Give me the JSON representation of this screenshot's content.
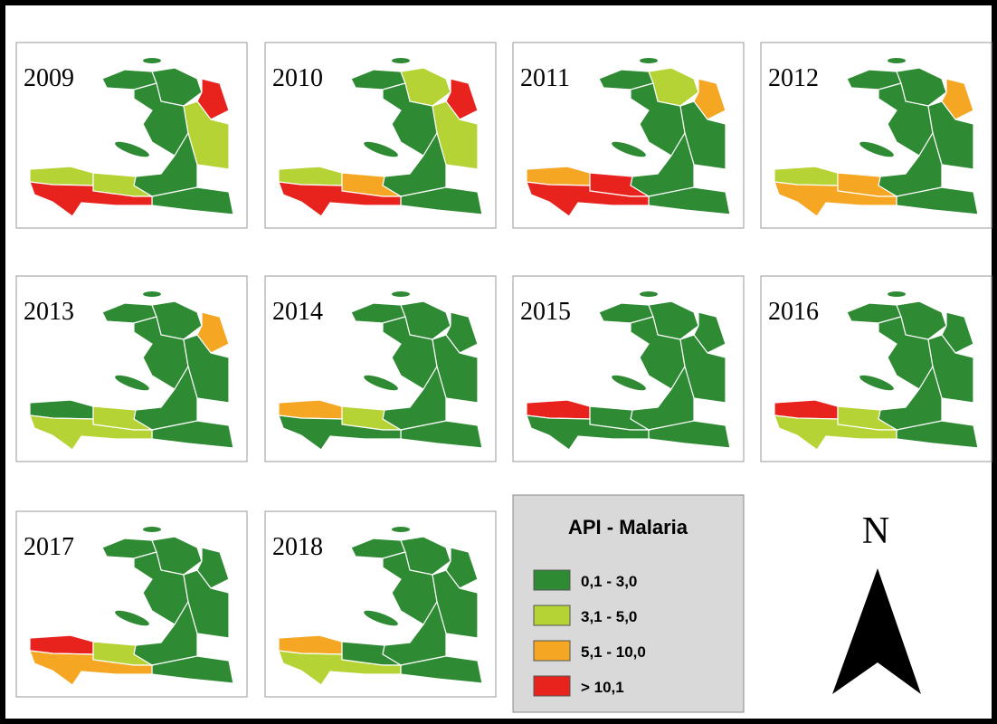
{
  "maps": [
    {
      "year": "2009",
      "fills": [
        "#2e8b34",
        "#2e8b34",
        "#e8231e",
        "#2e8b34",
        "#b5d334",
        "#2e8b34",
        "#2e8b34",
        "#b5d334",
        "#b5d334",
        "#e8231e"
      ]
    },
    {
      "year": "2010",
      "fills": [
        "#2e8b34",
        "#b5d334",
        "#e8231e",
        "#2e8b34",
        "#b5d334",
        "#2e8b34",
        "#2e8b34",
        "#b5d334",
        "#f5a623",
        "#e8231e"
      ]
    },
    {
      "year": "2011",
      "fills": [
        "#2e8b34",
        "#b5d334",
        "#f5a623",
        "#2e8b34",
        "#2e8b34",
        "#2e8b34",
        "#2e8b34",
        "#f5a623",
        "#e8231e",
        "#e8231e"
      ]
    },
    {
      "year": "2012",
      "fills": [
        "#2e8b34",
        "#2e8b34",
        "#f5a623",
        "#2e8b34",
        "#2e8b34",
        "#2e8b34",
        "#2e8b34",
        "#b5d334",
        "#f5a623",
        "#f5a623"
      ]
    },
    {
      "year": "2013",
      "fills": [
        "#2e8b34",
        "#2e8b34",
        "#f5a623",
        "#2e8b34",
        "#2e8b34",
        "#2e8b34",
        "#2e8b34",
        "#2e8b34",
        "#b5d334",
        "#b5d334"
      ]
    },
    {
      "year": "2014",
      "fills": [
        "#2e8b34",
        "#2e8b34",
        "#2e8b34",
        "#2e8b34",
        "#2e8b34",
        "#2e8b34",
        "#2e8b34",
        "#f5a623",
        "#b5d334",
        "#2e8b34"
      ]
    },
    {
      "year": "2015",
      "fills": [
        "#2e8b34",
        "#2e8b34",
        "#2e8b34",
        "#2e8b34",
        "#2e8b34",
        "#2e8b34",
        "#2e8b34",
        "#e8231e",
        "#2e8b34",
        "#2e8b34"
      ]
    },
    {
      "year": "2016",
      "fills": [
        "#2e8b34",
        "#2e8b34",
        "#2e8b34",
        "#2e8b34",
        "#2e8b34",
        "#2e8b34",
        "#2e8b34",
        "#e8231e",
        "#b5d334",
        "#b5d334"
      ]
    },
    {
      "year": "2017",
      "fills": [
        "#2e8b34",
        "#2e8b34",
        "#2e8b34",
        "#2e8b34",
        "#2e8b34",
        "#2e8b34",
        "#2e8b34",
        "#e8231e",
        "#b5d334",
        "#f5a623"
      ]
    },
    {
      "year": "2018",
      "fills": [
        "#2e8b34",
        "#2e8b34",
        "#2e8b34",
        "#2e8b34",
        "#2e8b34",
        "#2e8b34",
        "#2e8b34",
        "#f5a623",
        "#2e8b34",
        "#b5d334"
      ]
    }
  ],
  "legend": {
    "title": "API - Malaria",
    "items": [
      {
        "label": "0,1 - 3,0",
        "color": "#2e8b34"
      },
      {
        "label": "3,1 - 5,0",
        "color": "#b5d334"
      },
      {
        "label": "5,1 - 10,0",
        "color": "#f5a623"
      },
      {
        "label": "> 10,1",
        "color": "#e8231e"
      }
    ]
  },
  "north": "N"
}
